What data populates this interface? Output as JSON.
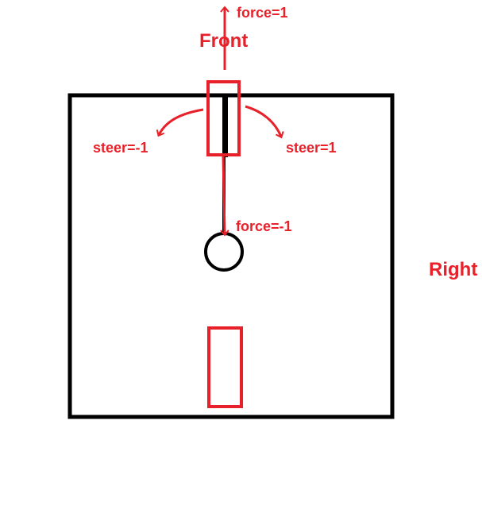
{
  "labels": {
    "front": "Front",
    "right": "Right",
    "force_forward": "force=1",
    "force_backward": "force=-1",
    "steer_left": "steer=-1",
    "steer_right": "steer=1"
  },
  "colors": {
    "annotation": "#e8202a",
    "outline": "#000000",
    "background": "#ffffff"
  }
}
